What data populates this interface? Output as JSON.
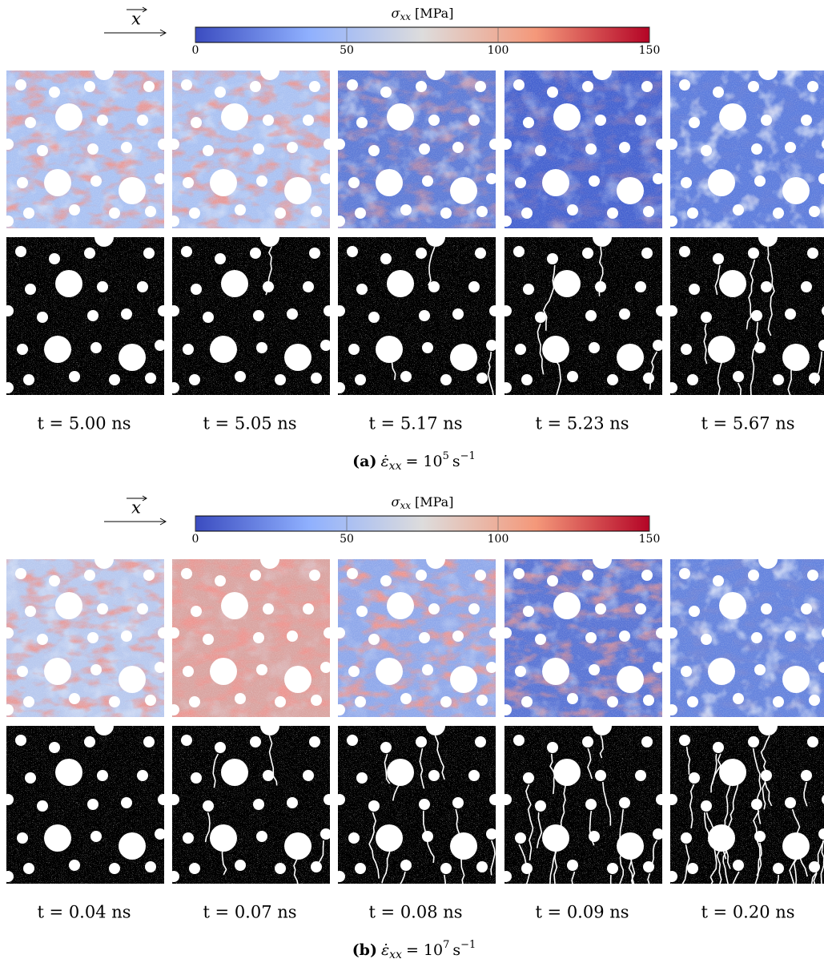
{
  "axis_label": "x",
  "colorbar": {
    "symbol": "σ",
    "subscript": "xx",
    "unit": "[MPa]",
    "lim": [
      0,
      150
    ],
    "ticks": [
      0,
      50,
      100,
      150
    ]
  },
  "parts": [
    {
      "times": [
        "t = 5.00 ns",
        "t = 5.05 ns",
        "t = 5.17 ns",
        "t = 5.23 ns",
        "t = 5.67 ns"
      ],
      "caption": {
        "label": "(a)",
        "symbol": "ε̇",
        "subscript": "xx",
        "equals": "= 10",
        "exponent": "5",
        "unit": "s",
        "unit_exponent": "−1"
      }
    },
    {
      "times": [
        "t = 0.04 ns",
        "t = 0.07 ns",
        "t = 0.08 ns",
        "t = 0.09 ns",
        "t = 0.20 ns"
      ],
      "caption": {
        "label": "(b)",
        "symbol": "ε̇",
        "subscript": "xx",
        "equals": "= 10",
        "exponent": "7",
        "unit": "s",
        "unit_exponent": "−1"
      }
    }
  ]
}
